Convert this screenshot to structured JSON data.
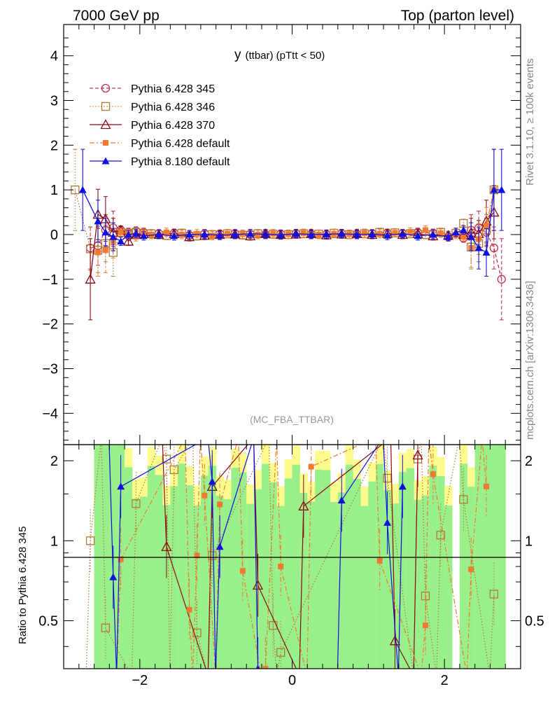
{
  "header": {
    "left": "7000 GeV pp",
    "right": "Top (parton level)"
  },
  "side": {
    "upper": "Rivet 3.1.10, ≥ 100k events",
    "lower": "mcplots.cern.ch [arXiv:1306.3436]"
  },
  "chart_data": [
    {
      "type": "line",
      "title": "y (ttbar) (pTtt < 50)",
      "title_main": "y",
      "title_sub": "(ttbar) (pTtt < 50)",
      "watermark": "(MC_FBA_TTBAR)",
      "xlim": [
        -3,
        3
      ],
      "ylim": [
        -4.7,
        4.7
      ],
      "yticks": [
        -4,
        -3,
        -2,
        -1,
        0,
        1,
        2,
        3,
        4
      ],
      "yticklabels": [
        "−4",
        "−3",
        "−2",
        "−1",
        "0",
        "1",
        "2",
        "3",
        "4"
      ],
      "legend_position": "top-left",
      "series": [
        {
          "name": "Pythia 6.428 345",
          "color": "#c0304a",
          "marker": "open-circle",
          "dash": "dashed",
          "x": [
            -2.65,
            -2.55,
            -2.45,
            -2.35,
            -2.25,
            -2.15,
            -2.05,
            -1.95,
            -1.75,
            -1.55,
            -1.35,
            -1.15,
            -0.95,
            -0.75,
            -0.55,
            -0.35,
            -0.15,
            0.05,
            0.25,
            0.45,
            0.65,
            0.85,
            1.05,
            1.25,
            1.45,
            1.65,
            1.85,
            2.05,
            2.25,
            2.35,
            2.45,
            2.55,
            2.65,
            2.75
          ],
          "y": [
            -0.3,
            -0.25,
            0.1,
            0.15,
            0.1,
            0.05,
            0.08,
            0.05,
            0.02,
            0.03,
            -0.02,
            0.02,
            0.01,
            0.02,
            0.01,
            0.0,
            0.01,
            0.02,
            0.01,
            0.0,
            0.02,
            0.01,
            0.02,
            0.03,
            0.02,
            0.05,
            0.03,
            -0.05,
            -0.08,
            0.1,
            0.15,
            0.05,
            -0.3,
            -1.0
          ]
        },
        {
          "name": "Pythia 6.428 346",
          "color": "#b07a38",
          "marker": "open-square",
          "dash": "dotted",
          "x": [
            -2.85,
            -2.65,
            -2.55,
            -2.45,
            -2.35,
            -2.25,
            -2.15,
            -2.05,
            -1.85,
            -1.65,
            -1.45,
            -1.25,
            -1.05,
            -0.85,
            -0.65,
            -0.45,
            -0.25,
            -0.05,
            0.15,
            0.35,
            0.55,
            0.75,
            0.95,
            1.15,
            1.35,
            1.55,
            1.75,
            1.95,
            2.15,
            2.25,
            2.35,
            2.45,
            2.55,
            2.65
          ],
          "y": [
            1.0,
            -0.32,
            -0.35,
            -0.2,
            -0.4,
            0.05,
            0.0,
            0.05,
            0.02,
            -0.02,
            0.03,
            -0.03,
            0.0,
            0.02,
            -0.01,
            0.02,
            0.01,
            0.0,
            0.02,
            0.01,
            0.03,
            0.0,
            0.02,
            0.05,
            0.04,
            0.02,
            0.0,
            0.05,
            0.03,
            0.25,
            -0.28,
            -0.2,
            0.1,
            1.0
          ]
        },
        {
          "name": "Pythia 6.428 370",
          "color": "#8b0a12",
          "marker": "open-triangle",
          "dash": "solid",
          "x": [
            -2.65,
            -2.55,
            -2.45,
            -2.35,
            -2.25,
            -2.15,
            -2.05,
            -1.95,
            -1.75,
            -1.55,
            -1.35,
            -1.15,
            -0.95,
            -0.75,
            -0.55,
            -0.35,
            -0.15,
            0.05,
            0.25,
            0.45,
            0.65,
            0.85,
            1.05,
            1.25,
            1.45,
            1.65,
            1.85,
            2.05,
            2.25,
            2.35,
            2.45,
            2.55,
            2.65
          ],
          "y": [
            -1.0,
            0.45,
            0.35,
            0.05,
            0.1,
            -0.15,
            0.0,
            0.02,
            0.0,
            0.02,
            -0.05,
            -0.02,
            0.0,
            0.01,
            -0.03,
            0.02,
            0.0,
            0.01,
            0.02,
            -0.01,
            0.01,
            0.02,
            0.0,
            0.02,
            0.0,
            0.02,
            -0.03,
            -0.02,
            0.0,
            0.05,
            0.02,
            0.3,
            0.5
          ]
        },
        {
          "name": "Pythia 6.428 default",
          "color": "#f07a30",
          "marker": "filled-square",
          "dash": "dashdot",
          "x": [
            -2.55,
            -2.45,
            -2.35,
            -2.25,
            -2.15,
            -2.05,
            -1.95,
            -1.85,
            -1.65,
            -1.45,
            -1.25,
            -1.05,
            -0.85,
            -0.65,
            -0.45,
            -0.25,
            -0.05,
            0.15,
            0.35,
            0.55,
            0.75,
            0.95,
            1.15,
            1.35,
            1.55,
            1.75,
            1.95,
            2.15,
            2.25,
            2.35,
            2.45,
            2.55,
            2.65
          ],
          "y": [
            -0.4,
            -0.35,
            -0.15,
            0.05,
            0.02,
            -0.05,
            0.03,
            0.0,
            0.05,
            0.0,
            0.02,
            -0.02,
            0.02,
            0.01,
            0.0,
            0.02,
            0.01,
            0.03,
            0.0,
            0.02,
            0.01,
            0.03,
            0.02,
            0.04,
            0.06,
            0.1,
            0.03,
            0.0,
            -0.05,
            -0.3,
            -0.1,
            0.2,
            1.0
          ]
        },
        {
          "name": "Pythia 8.180 default",
          "color": "#1010e0",
          "marker": "filled-triangle",
          "dash": "solid",
          "x": [
            -2.75,
            -2.55,
            -2.45,
            -2.35,
            -2.25,
            -2.15,
            -2.05,
            -1.95,
            -1.75,
            -1.55,
            -1.35,
            -1.15,
            -0.95,
            -0.75,
            -0.55,
            -0.35,
            -0.15,
            0.05,
            0.25,
            0.45,
            0.65,
            0.85,
            1.05,
            1.25,
            1.45,
            1.65,
            1.85,
            2.05,
            2.15,
            2.25,
            2.35,
            2.45,
            2.55,
            2.65,
            2.75
          ],
          "y": [
            1.0,
            0.3,
            0.05,
            -0.05,
            -0.15,
            0.0,
            0.02,
            -0.03,
            0.0,
            -0.03,
            0.0,
            0.01,
            -0.02,
            0.0,
            0.02,
            0.01,
            -0.01,
            0.02,
            0.0,
            0.01,
            0.02,
            0.0,
            0.01,
            -0.02,
            0.02,
            -0.03,
            0.0,
            -0.05,
            0.05,
            0.1,
            -0.05,
            -0.3,
            -0.4,
            1.0,
            1.0
          ]
        }
      ]
    },
    {
      "type": "line",
      "ylabel": "Ratio to Pythia 6.428 345",
      "xlim": [
        -3,
        3
      ],
      "ylim": [
        0.33,
        2.3
      ],
      "yscale": "log",
      "xticks": [
        -2,
        0,
        2
      ],
      "xticklabels": [
        "−2",
        "0",
        "2"
      ],
      "yticks": [
        0.5,
        1,
        2
      ],
      "yticklabels": [
        "0.5",
        "1",
        "2"
      ],
      "bands": {
        "green": "#99f08a",
        "yellow": "#fbfb8e"
      },
      "series": [
        {
          "name": "Pythia 6.428 346",
          "color": "#b07a38",
          "marker": "open-square",
          "x": [
            -2.65,
            -2.45,
            -2.05,
            -1.65,
            -1.55,
            -1.25,
            -1.05,
            -0.25,
            -0.15,
            1.25,
            1.65,
            1.75,
            1.95,
            2.25,
            2.65
          ],
          "y": [
            1.0,
            0.47,
            1.38,
            2.03,
            1.85,
            0.45,
            0.88,
            0.48,
            0.38,
            1.72,
            2.03,
            0.62,
            1.05,
            1.43,
            0.63
          ]
        },
        {
          "name": "Pythia 6.428 370",
          "color": "#8b0a12",
          "marker": "open-triangle",
          "x": [
            -1.65,
            -1.05,
            -0.45,
            0.15,
            1.35,
            1.65
          ],
          "y": [
            0.95,
            1.6,
            0.68,
            1.35,
            0.42,
            2.1
          ]
        },
        {
          "name": "Pythia 6.428 default",
          "color": "#f07a30",
          "marker": "filled-square",
          "x": [
            -2.25,
            -1.35,
            -1.25,
            -1.15,
            -0.95,
            -0.65,
            -0.35,
            -0.15,
            0.25,
            1.15,
            1.75,
            1.85,
            2.35,
            2.55
          ],
          "y": [
            0.85,
            0.55,
            0.88,
            1.48,
            1.37,
            0.77,
            0.33,
            0.8,
            1.9,
            0.84,
            0.48,
            1.78,
            0.78,
            1.6
          ]
        },
        {
          "name": "Pythia 8.180 default",
          "color": "#1010e0",
          "marker": "filled-triangle",
          "x": [
            -2.35,
            -2.25,
            -1.05,
            -0.95,
            -0.45,
            0.65,
            1.25,
            1.45
          ],
          "y": [
            0.73,
            1.6,
            1.67,
            0.95,
            0.33,
            1.42,
            1.17,
            1.6
          ]
        }
      ]
    }
  ]
}
